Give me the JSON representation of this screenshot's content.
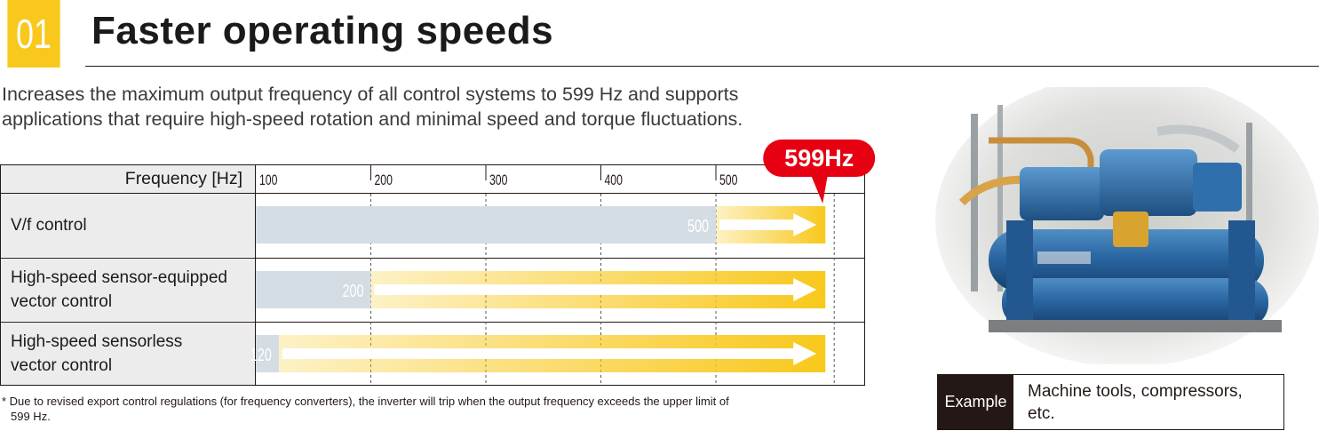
{
  "section": {
    "number": "01",
    "title": "Faster operating speeds",
    "intro_line1": "Increases the maximum output frequency of all control systems to 599 Hz and supports",
    "intro_line2": "applications that require high-speed rotation and minimal speed and torque fluctuations."
  },
  "chart_data": {
    "type": "bar",
    "header_label": "Frequency [Hz]",
    "ticks": [
      100,
      200,
      300,
      400,
      500
    ],
    "xlim": [
      100,
      599
    ],
    "max_label": "599Hz",
    "max_value": 599,
    "categories": [
      {
        "line1": "V/f control",
        "line2": ""
      },
      {
        "line1": "High-speed sensor-equipped",
        "line2": "vector control"
      },
      {
        "line1": "High-speed sensorless",
        "line2": "vector control"
      }
    ],
    "series": [
      {
        "values": [
          500,
          200,
          120
        ]
      },
      {
        "values": [
          599,
          599,
          599
        ]
      }
    ],
    "colors": {
      "previous": "#d3dde3",
      "extended": "#f8c81c",
      "badge": "#e60012"
    }
  },
  "footnote": {
    "line1": "* Due to revised export control regulations (for frequency converters), the inverter will trip when the output frequency exceeds the upper limit of",
    "line2": "599 Hz."
  },
  "example": {
    "tag": "Example",
    "line1": "Machine tools, compressors,",
    "line2": "etc."
  }
}
